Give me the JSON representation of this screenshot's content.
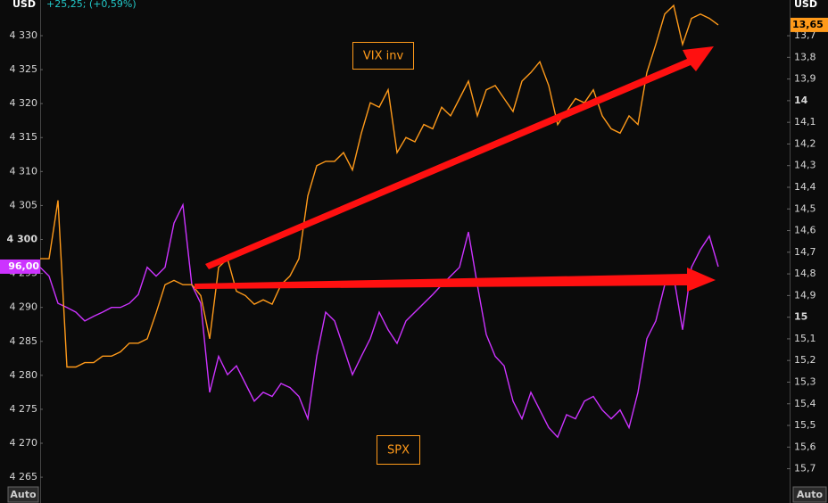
{
  "chart_data": {
    "type": "line",
    "left_unit": "USD",
    "right_unit": "USD",
    "subtitle": "+25,25; (+0,59%)",
    "scale_mode_left": "Auto",
    "scale_mode_right": "Auto",
    "categories": [
      null,
      null,
      null,
      null,
      null,
      null,
      null,
      null,
      null,
      null,
      null,
      null,
      null,
      null,
      null,
      null,
      null,
      null,
      null,
      null,
      null,
      null,
      null,
      null,
      null,
      null,
      null,
      null,
      null,
      null,
      null,
      null,
      null,
      null,
      null,
      null,
      null,
      null,
      null,
      null,
      null,
      null,
      null,
      null,
      null,
      null,
      null,
      null,
      null,
      null,
      null,
      null,
      null,
      null,
      null,
      null,
      null,
      null,
      null,
      null,
      null,
      null,
      null,
      null,
      null,
      null,
      null,
      null,
      null,
      null,
      null,
      null,
      null,
      null,
      null,
      null,
      null
    ],
    "series": [
      {
        "name": "SPX",
        "color": "#cc33ff",
        "flag": {
          "value": 4296.0,
          "label": "96,00"
        },
        "values": [
          4295.9,
          4294.6,
          4290.6,
          4290.0,
          4289.3,
          4288.0,
          4288.7,
          4289.3,
          4290.0,
          4290.0,
          4290.6,
          4291.9,
          4295.9,
          4294.6,
          4295.9,
          4302.4,
          4305.1,
          4293.3,
          4290.6,
          4277.5,
          4282.8,
          4280.1,
          4281.4,
          4278.8,
          4276.2,
          4277.5,
          4276.9,
          4278.8,
          4278.2,
          4276.9,
          4273.6,
          4282.8,
          4289.3,
          4288.0,
          4284.1,
          4280.1,
          4282.8,
          4285.4,
          4289.3,
          4286.7,
          4284.7,
          4288.0,
          4289.3,
          4290.6,
          4291.9,
          4293.3,
          4294.6,
          4295.9,
          4301.1,
          4293.3,
          4286.0,
          4282.8,
          4281.4,
          4276.2,
          4273.6,
          4277.5,
          4274.9,
          4272.3,
          4270.9,
          4274.2,
          4273.6,
          4276.2,
          4276.9,
          4274.9,
          4273.6,
          4274.9,
          4272.3,
          4277.5,
          4285.4,
          4288.0,
          4293.3,
          4294.6,
          4286.7,
          4295.9,
          4298.5,
          4300.5,
          4296.0
        ]
      },
      {
        "name": "VIX inv",
        "color": "#ff9a1a",
        "axis": "y2",
        "flag": {
          "value": 13.65,
          "label": "13,65"
        },
        "values": [
          14.73,
          14.73,
          14.46,
          15.23,
          15.23,
          15.21,
          15.21,
          15.18,
          15.18,
          15.16,
          15.12,
          15.12,
          15.1,
          14.98,
          14.85,
          14.83,
          14.85,
          14.85,
          14.9,
          15.1,
          14.77,
          14.73,
          14.88,
          14.9,
          14.94,
          14.92,
          14.94,
          14.85,
          14.81,
          14.73,
          14.44,
          14.3,
          14.28,
          14.28,
          14.24,
          14.32,
          14.15,
          14.01,
          14.03,
          13.95,
          14.24,
          14.17,
          14.19,
          14.11,
          14.13,
          14.03,
          14.07,
          13.99,
          13.91,
          14.07,
          13.95,
          13.93,
          13.99,
          14.05,
          13.91,
          13.87,
          13.82,
          13.93,
          14.11,
          14.05,
          13.99,
          14.01,
          13.95,
          14.07,
          14.13,
          14.15,
          14.07,
          14.11,
          13.87,
          13.74,
          13.6,
          13.56,
          13.74,
          13.62,
          13.6,
          13.62,
          13.65
        ]
      }
    ],
    "ylim": [
      4263.7,
      4335.25
    ],
    "yticks": [
      {
        "value": 4265,
        "label": "4 265"
      },
      {
        "value": 4270,
        "label": "4 270"
      },
      {
        "value": 4275,
        "label": "4 275"
      },
      {
        "value": 4280,
        "label": "4 280"
      },
      {
        "value": 4285,
        "label": "4 285"
      },
      {
        "value": 4290,
        "label": "4 290"
      },
      {
        "value": 4295,
        "label": "4 295"
      },
      {
        "value": 4300,
        "label": "4 300"
      },
      {
        "value": 4305,
        "label": "4 305"
      },
      {
        "value": 4310,
        "label": "4 310"
      },
      {
        "value": 4315,
        "label": "4 315"
      },
      {
        "value": 4320,
        "label": "4 320"
      },
      {
        "value": 4325,
        "label": "4 325"
      },
      {
        "value": 4330,
        "label": "4 330"
      }
    ],
    "y2lim": [
      15.78,
      13.535
    ],
    "y2ticks": [
      {
        "value": 13.7,
        "label": "13,7"
      },
      {
        "value": 13.8,
        "label": "13,8"
      },
      {
        "value": 13.9,
        "label": "13,9"
      },
      14,
      {
        "value": 14.1,
        "label": "14,1"
      },
      {
        "value": 14.2,
        "label": "14,2"
      },
      {
        "value": 14.3,
        "label": "14,3"
      },
      {
        "value": 14.4,
        "label": "14,4"
      },
      {
        "value": 14.5,
        "label": "14,5"
      },
      {
        "value": 14.6,
        "label": "14,6"
      },
      {
        "value": 14.7,
        "label": "14,7"
      },
      {
        "value": 14.8,
        "label": "14,8"
      },
      {
        "value": 14.9,
        "label": "14,9"
      },
      15,
      {
        "value": 15.1,
        "label": "15,1"
      },
      {
        "value": 15.2,
        "label": "15,2"
      },
      {
        "value": 15.3,
        "label": "15,3"
      },
      {
        "value": 15.4,
        "label": "15,4"
      },
      {
        "value": 15.5,
        "label": "15,5"
      },
      {
        "value": 15.6,
        "label": "15,6"
      },
      {
        "value": 15.7,
        "label": "15,7"
      }
    ],
    "grid": false
  }
}
